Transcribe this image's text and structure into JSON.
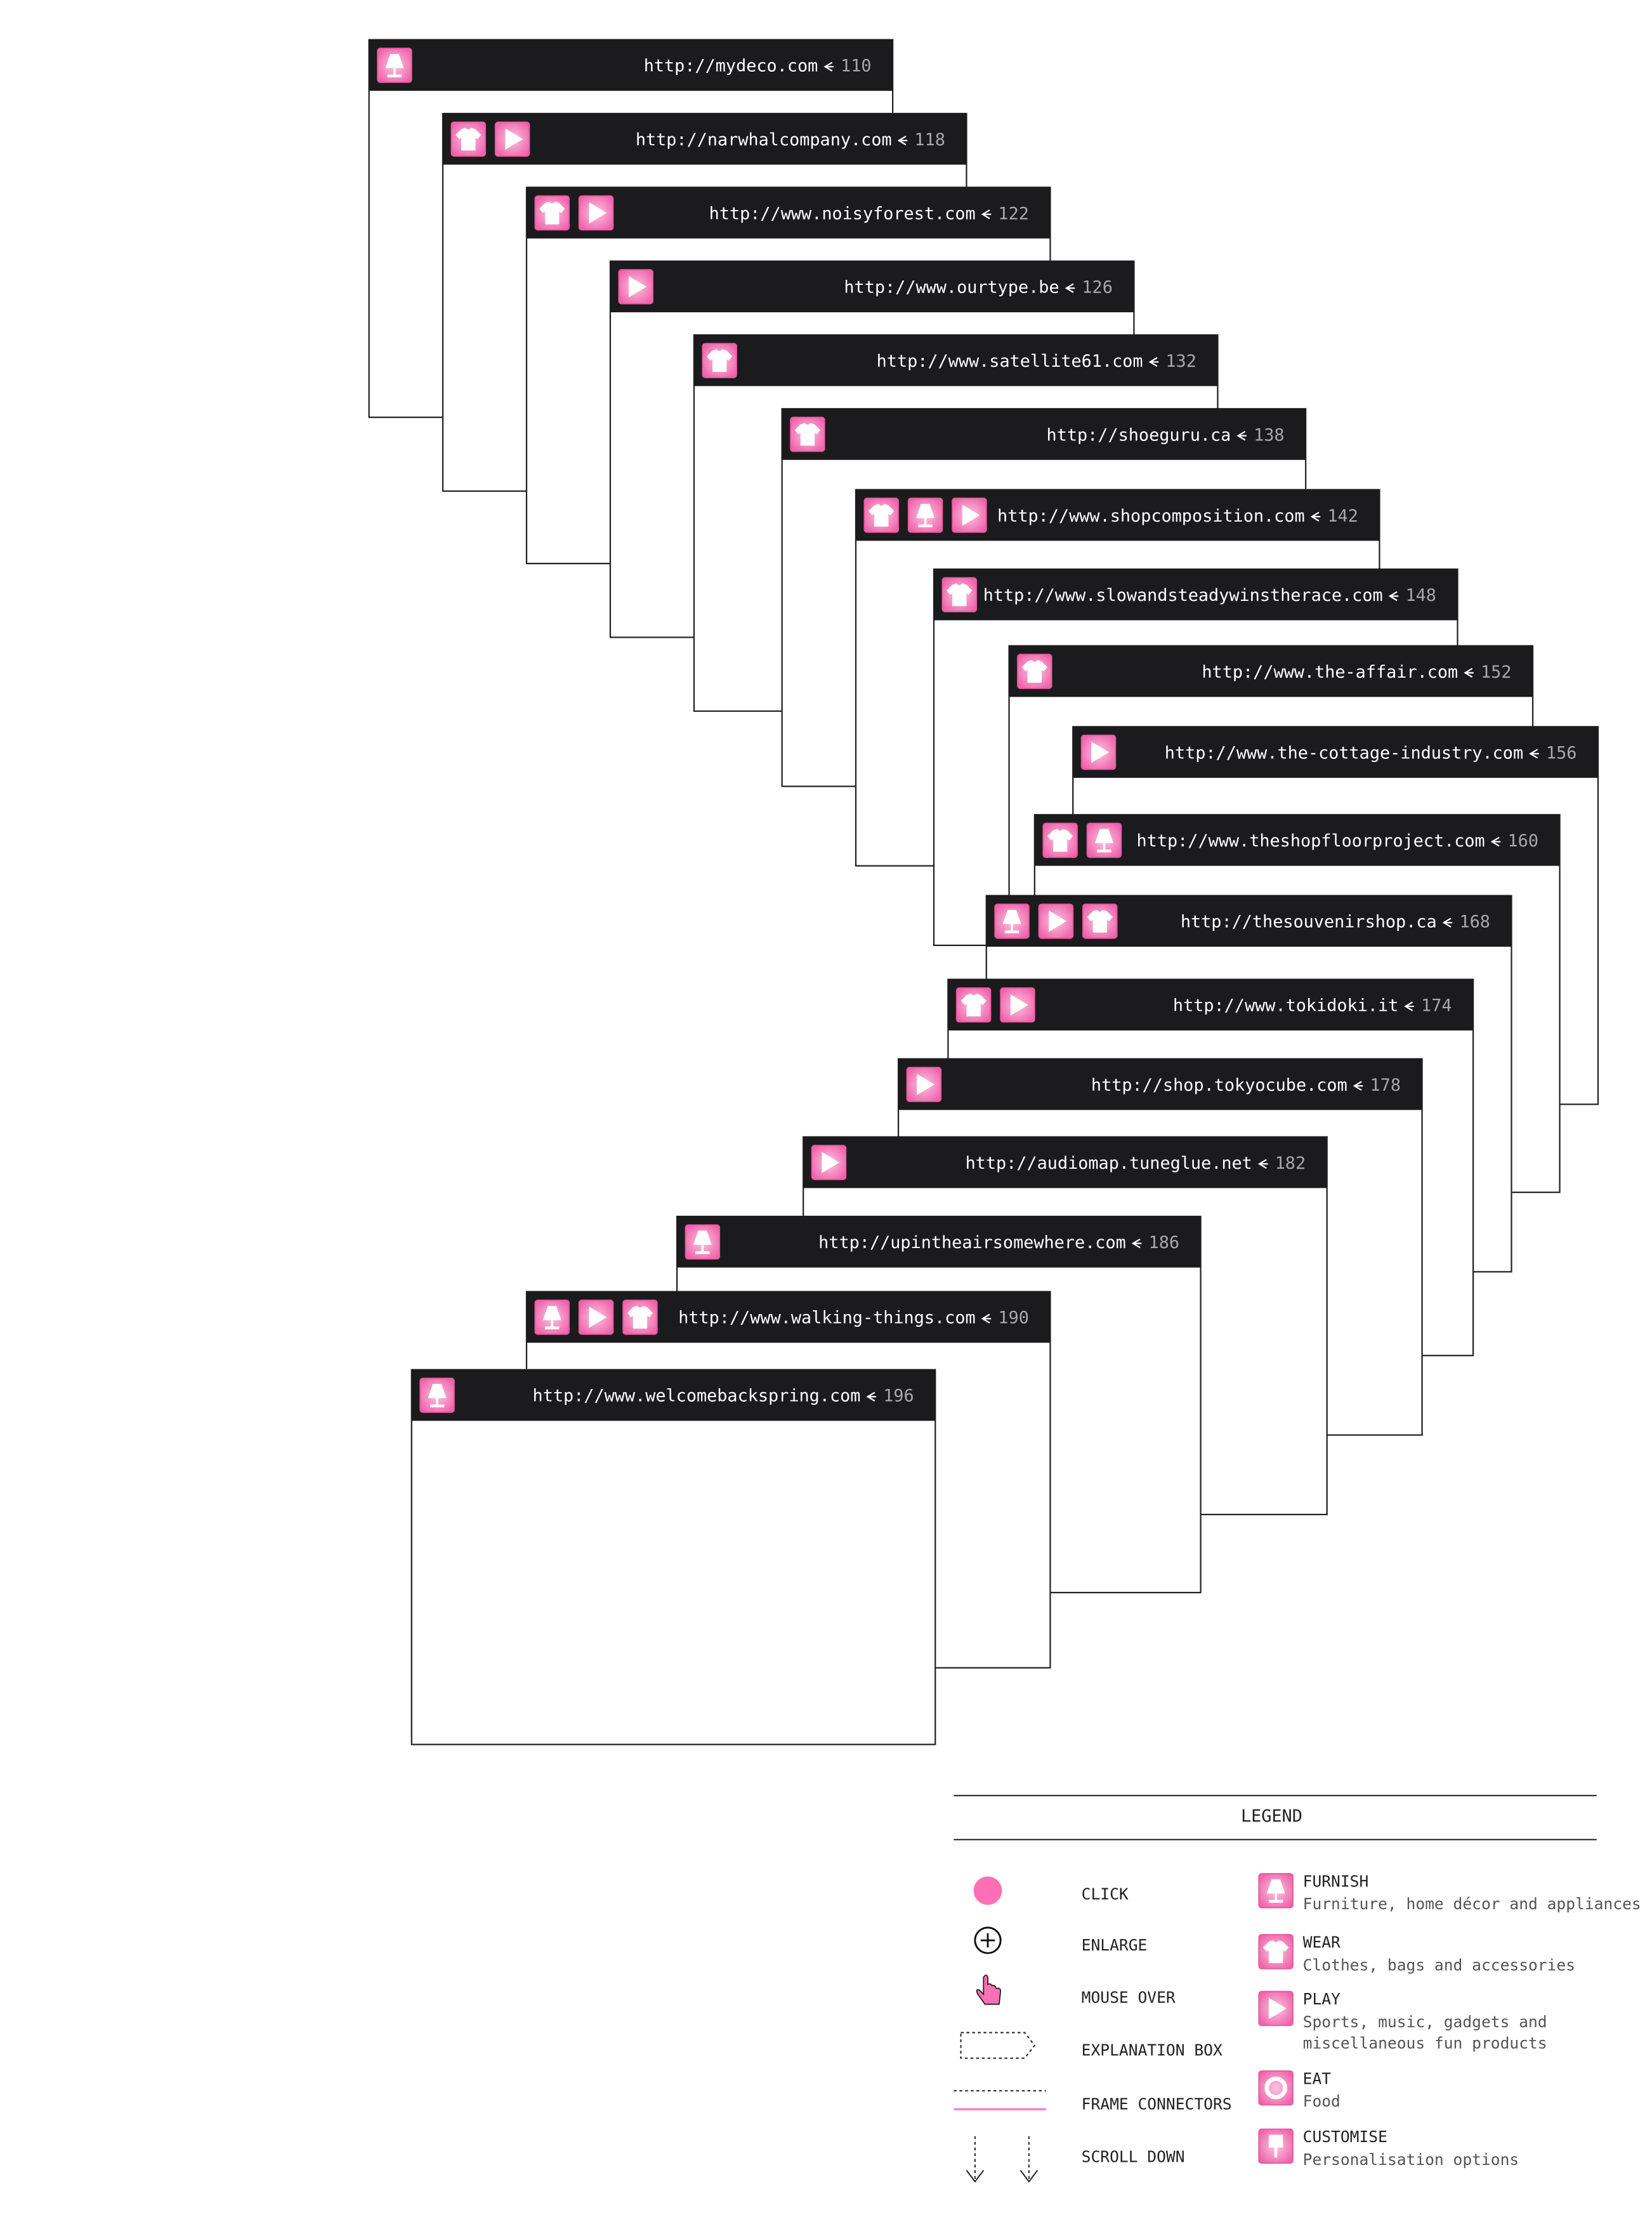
{
  "windows": [
    {
      "url": "http://mydeco.com",
      "page": "110"
    },
    {
      "url": "http://narwhalcompany.com",
      "page": "118"
    },
    {
      "url": "http://www.noisyforest.com",
      "page": "122"
    },
    {
      "url": "http://www.ourtype.be",
      "page": "126"
    },
    {
      "url": "http://www.satellite61.com",
      "page": "132"
    },
    {
      "url": "http://shoeguru.ca",
      "page": "138"
    },
    {
      "url": "http://www.shopcomposition.com",
      "page": "142"
    },
    {
      "url": "http://www.slowandsteadywinstherace.com",
      "page": "148"
    },
    {
      "url": "http://www.the-affair.com",
      "page": "152"
    },
    {
      "url": "http://www.the-cottage-industry.com",
      "page": "156"
    },
    {
      "url": "http://www.theshopfloorproject.com",
      "page": "160"
    },
    {
      "url": "http://thesouvenirshop.ca",
      "page": "168"
    },
    {
      "url": "http://www.tokidoki.it",
      "page": "174"
    },
    {
      "url": "http://shop.tokyocube.com",
      "page": "178"
    },
    {
      "url": "http://audiomap.tuneglue.net",
      "page": "182"
    },
    {
      "url": "http://upintheairsomewhere.com",
      "page": "186"
    },
    {
      "url": "http://www.walking-things.com",
      "page": "190"
    },
    {
      "url": "http://www.welcomebackspring.com",
      "page": "196"
    }
  ],
  "legend": {
    "title": "LEGEND",
    "actions": [
      "CLICK",
      "ENLARGE",
      "MOUSE OVER",
      "EXPLANATION BOX",
      "FRAME CONNECTORS",
      "SCROLL DOWN"
    ],
    "categories": [
      {
        "name": "FURNISH",
        "lines": [
          "Furniture, home décor and appliances"
        ]
      },
      {
        "name": "WEAR",
        "lines": [
          "Clothes, bags and accessories"
        ]
      },
      {
        "name": "PLAY",
        "lines": [
          "Sports, music, gadgets and",
          "miscellaneous fun products"
        ]
      },
      {
        "name": "EAT",
        "lines": [
          "Food"
        ]
      },
      {
        "name": "CUSTOMISE",
        "lines": [
          "Personalisation options"
        ]
      }
    ]
  }
}
